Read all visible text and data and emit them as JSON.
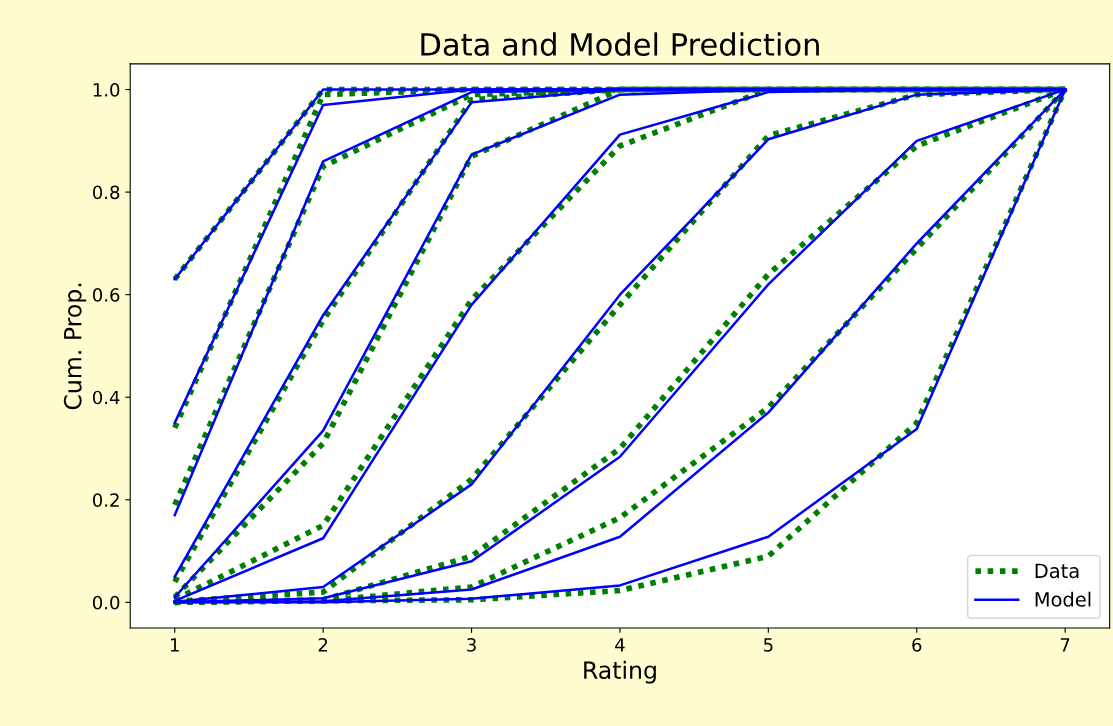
{
  "chart_data": {
    "type": "line",
    "title": "Data and Model Prediction",
    "xlabel": "Rating",
    "ylabel": "Cum. Prop.",
    "x": [
      1,
      2,
      3,
      4,
      5,
      6,
      7
    ],
    "xlim": [
      0.7,
      7.3
    ],
    "xticks": [
      1,
      2,
      3,
      4,
      5,
      6,
      7
    ],
    "ylim": [
      -0.05,
      1.05
    ],
    "yticks": [
      {
        "value": 0,
        "label": "0.0"
      },
      {
        "value": 0.2,
        "label": "0.2"
      },
      {
        "value": 0.4,
        "label": "0.4"
      },
      {
        "value": 0.6,
        "label": "0.6"
      },
      {
        "value": 0.8,
        "label": "0.8"
      },
      {
        "value": 1,
        "label": "1.0"
      }
    ],
    "grid": false,
    "legend": "bottom right",
    "series": [
      {
        "name": "Data",
        "color": "#008000",
        "line_style": "dotted",
        "values": [
          0.63,
          1.0,
          1.0,
          1.0,
          1.0,
          1.0,
          1.0
        ]
      },
      {
        "color": "#008000",
        "line_style": "dotted",
        "values": [
          0.34,
          0.99,
          1.0,
          1.0,
          1.0,
          1.0,
          1.0
        ]
      },
      {
        "color": "#008000",
        "line_style": "dotted",
        "values": [
          0.19,
          0.85,
          0.99,
          1.0,
          1.0,
          1.0,
          1.0
        ]
      },
      {
        "color": "#008000",
        "line_style": "dotted",
        "values": [
          0.04,
          0.55,
          0.98,
          1.0,
          1.0,
          1.0,
          1.0
        ]
      },
      {
        "color": "#008000",
        "line_style": "dotted",
        "values": [
          0.01,
          0.31,
          0.87,
          1.0,
          1.0,
          1.0,
          1.0
        ]
      },
      {
        "color": "#008000",
        "line_style": "dotted",
        "values": [
          0.005,
          0.15,
          0.59,
          0.89,
          1.0,
          1.0,
          1.0
        ]
      },
      {
        "color": "#008000",
        "line_style": "dotted",
        "values": [
          0.002,
          0.02,
          0.24,
          0.58,
          0.91,
          0.99,
          1.0
        ]
      },
      {
        "color": "#008000",
        "line_style": "dotted",
        "values": [
          0.0,
          0.005,
          0.09,
          0.3,
          0.64,
          0.89,
          1.0
        ]
      },
      {
        "color": "#008000",
        "line_style": "dotted",
        "values": [
          0.0,
          0.003,
          0.03,
          0.165,
          0.38,
          0.69,
          1.0
        ]
      },
      {
        "color": "#008000",
        "line_style": "dotted",
        "values": [
          0.0,
          0.003,
          0.005,
          0.023,
          0.09,
          0.35,
          1.0
        ]
      },
      {
        "name": "Model",
        "color": "#0000ff",
        "line_style": "solid",
        "values": [
          0.63,
          1.0,
          1.0,
          1.0,
          1.0,
          1.0,
          1.0
        ]
      },
      {
        "color": "#0000ff",
        "line_style": "solid",
        "values": [
          0.35,
          0.97,
          1.0,
          1.0,
          1.0,
          1.0,
          1.0
        ]
      },
      {
        "color": "#0000ff",
        "line_style": "solid",
        "values": [
          0.17,
          0.86,
          0.995,
          1.0,
          1.0,
          1.0,
          1.0
        ]
      },
      {
        "color": "#0000ff",
        "line_style": "solid",
        "values": [
          0.05,
          0.56,
          0.975,
          1.0,
          1.0,
          1.0,
          1.0
        ]
      },
      {
        "color": "#0000ff",
        "line_style": "solid",
        "values": [
          0.01,
          0.335,
          0.873,
          0.99,
          1.0,
          1.0,
          1.0
        ]
      },
      {
        "color": "#0000ff",
        "line_style": "solid",
        "values": [
          0.003,
          0.125,
          0.58,
          0.912,
          0.995,
          1.0,
          1.0
        ]
      },
      {
        "color": "#0000ff",
        "line_style": "solid",
        "values": [
          0.001,
          0.03,
          0.23,
          0.6,
          0.903,
          0.99,
          1.0
        ]
      },
      {
        "color": "#0000ff",
        "line_style": "solid",
        "values": [
          0.0,
          0.008,
          0.08,
          0.284,
          0.62,
          0.9,
          1.0
        ]
      },
      {
        "color": "#0000ff",
        "line_style": "solid",
        "values": [
          0.0,
          0.002,
          0.025,
          0.128,
          0.37,
          0.7,
          1.0
        ]
      },
      {
        "color": "#0000ff",
        "line_style": "solid",
        "values": [
          0.0,
          0.0,
          0.007,
          0.033,
          0.128,
          0.338,
          1.0
        ]
      }
    ]
  }
}
